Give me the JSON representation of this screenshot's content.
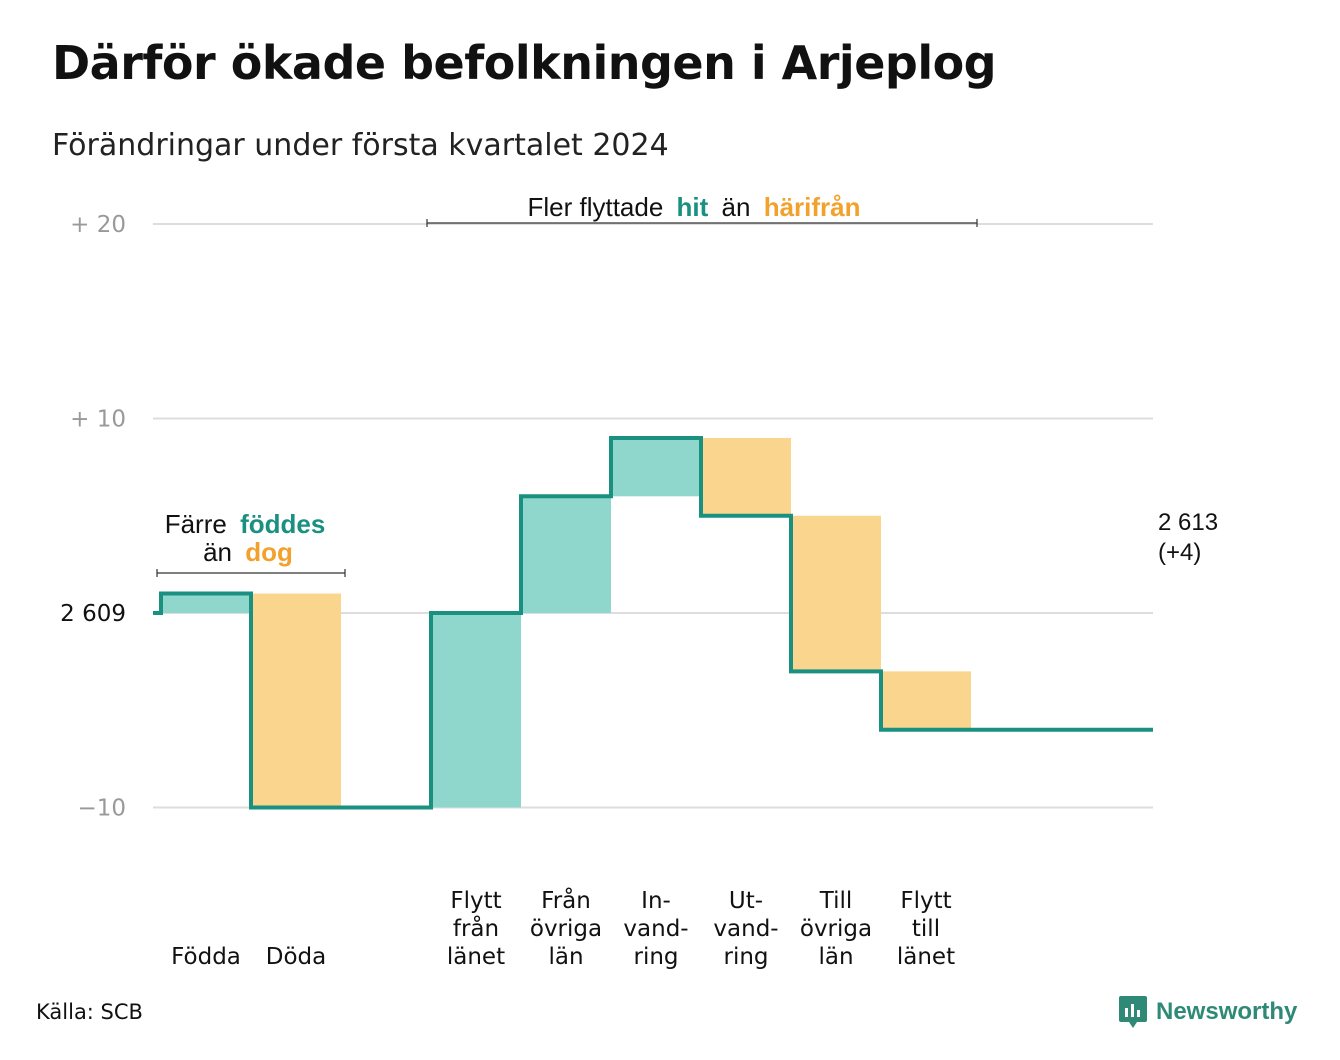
{
  "title": "Därför ökade befolkningen i Arjeplog",
  "subtitle": "Förändringar under första kvartalet 2024",
  "source": "Källa: SCB",
  "brand": "Newsworthy",
  "colors": {
    "increase_fill": "#8fd6cc",
    "decrease_fill": "#fad58d",
    "line": "#1a9080",
    "accent_teal": "#1a9080",
    "accent_orange": "#f2a22c",
    "grid": "#dddddd"
  },
  "annotations": {
    "migration": {
      "pre": "Fler flyttade",
      "hit": "hit",
      "mid": "än",
      "harifran": "härifrån"
    },
    "births": {
      "line1_pre": "Färre",
      "line1_bold": "föddes",
      "line2_pre": "än",
      "line2_bold": "dog"
    },
    "end": {
      "line1": "2 613",
      "line2": "(+4)"
    }
  },
  "chart_data": {
    "type": "waterfall",
    "title": "Därför ökade befolkningen i Arjeplog",
    "subtitle": "Förändringar under första kvartalet 2024",
    "baseline": 2609,
    "final": 2613,
    "net_change": 4,
    "y_ticks": [
      {
        "value": 20,
        "label": "+  20"
      },
      {
        "value": 10,
        "label": "+  10"
      },
      {
        "value": 0,
        "label": "2  609"
      },
      {
        "value": -10,
        "label": "−10"
      }
    ],
    "ylim": [
      -10,
      20
    ],
    "grid": true,
    "categories": [
      {
        "label": [
          "",
          "",
          "Födda"
        ],
        "change": 1
      },
      {
        "label": [
          "",
          "",
          "Döda"
        ],
        "change": -11
      },
      {
        "label": null,
        "change": 0
      },
      {
        "label": [
          "Flytt",
          "från",
          "länet"
        ],
        "change": 10
      },
      {
        "label": [
          "Från",
          "övriga",
          "län"
        ],
        "change": 6
      },
      {
        "label": [
          "In-",
          "vand-",
          "ring"
        ],
        "change": 3
      },
      {
        "label": [
          "Ut-",
          "vand-",
          "ring"
        ],
        "change": -4
      },
      {
        "label": [
          "Till",
          "övriga",
          "län"
        ],
        "change": -8
      },
      {
        "label": [
          "Flytt",
          "till",
          "länet"
        ],
        "change": -3
      }
    ]
  }
}
